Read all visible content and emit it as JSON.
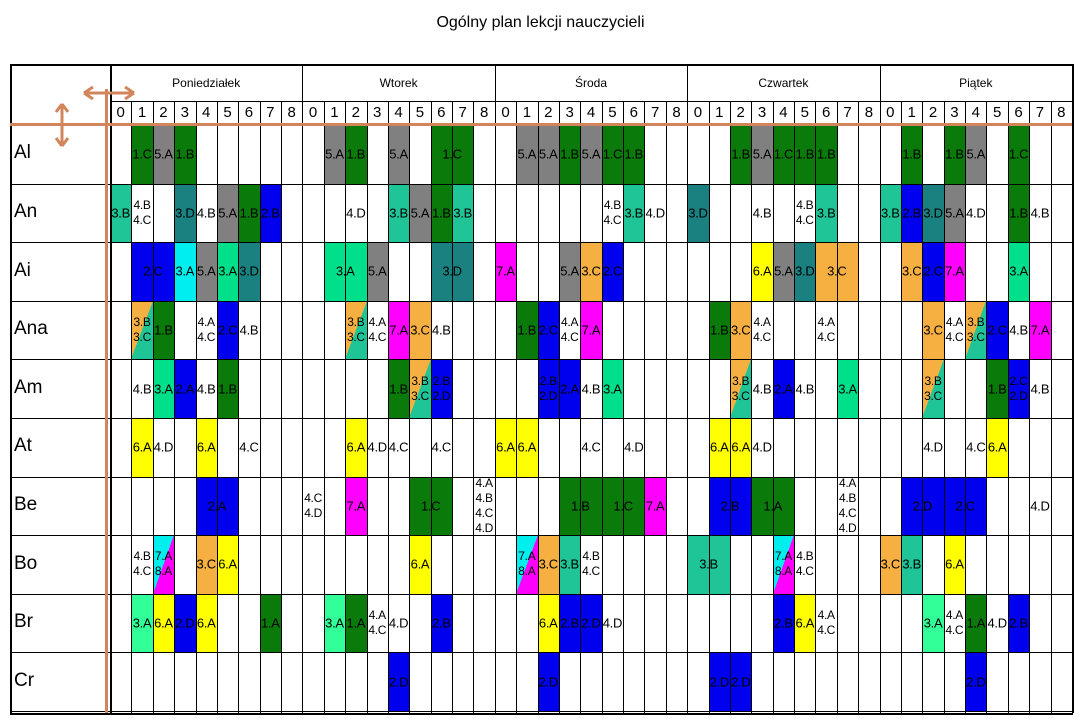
{
  "title": "Ogólny plan lekcji nauczycieli",
  "days": [
    "Poniedziałek",
    "Wtorek",
    "Środa",
    "Czwartek",
    "Piątek"
  ],
  "hours": [
    "0",
    "1",
    "2",
    "3",
    "4",
    "5",
    "6",
    "7",
    "8"
  ],
  "teachers": [
    "Al",
    "An",
    "Ai",
    "Ana",
    "Am",
    "At",
    "Be",
    "Bo",
    "Br",
    "Cr"
  ],
  "colors": {
    "green": "#0a7a0a",
    "gray": "#808080",
    "teal": "#1a8080",
    "seafoam": "#1fc497",
    "blue": "#0000ee",
    "yellow": "#ffff00",
    "orange": "#f6b042",
    "magenta": "#ff00ff",
    "cyan": "#00eeee",
    "mint": "#33ff99",
    "lightmint": "#00e08a",
    "accent_orange": "#d2855a"
  },
  "entries": [
    {
      "r": 0,
      "d": 0,
      "h": 1,
      "text": "1.C",
      "color": "green"
    },
    {
      "r": 0,
      "d": 0,
      "h": 2,
      "text": "5.A",
      "color": "gray"
    },
    {
      "r": 0,
      "d": 0,
      "h": 3,
      "text": "1.B",
      "color": "green"
    },
    {
      "r": 0,
      "d": 1,
      "h": 1,
      "text": "5.A",
      "color": "gray"
    },
    {
      "r": 0,
      "d": 1,
      "h": 2,
      "text": "1.B",
      "color": "green"
    },
    {
      "r": 0,
      "d": 1,
      "h": 4,
      "text": "5.A",
      "color": "gray"
    },
    {
      "r": 0,
      "d": 1,
      "h": 6,
      "text": "1.C",
      "color": "green",
      "span": 2
    },
    {
      "r": 0,
      "d": 2,
      "h": 1,
      "text": "5.A",
      "color": "gray"
    },
    {
      "r": 0,
      "d": 2,
      "h": 2,
      "text": "5.A",
      "color": "gray"
    },
    {
      "r": 0,
      "d": 2,
      "h": 3,
      "text": "1.B",
      "color": "green"
    },
    {
      "r": 0,
      "d": 2,
      "h": 4,
      "text": "5.A",
      "color": "gray"
    },
    {
      "r": 0,
      "d": 2,
      "h": 5,
      "text": "1.C",
      "color": "green"
    },
    {
      "r": 0,
      "d": 2,
      "h": 6,
      "text": "1.B",
      "color": "green"
    },
    {
      "r": 0,
      "d": 3,
      "h": 2,
      "text": "1.B",
      "color": "green"
    },
    {
      "r": 0,
      "d": 3,
      "h": 3,
      "text": "5.A",
      "color": "gray"
    },
    {
      "r": 0,
      "d": 3,
      "h": 4,
      "text": "1.C",
      "color": "green"
    },
    {
      "r": 0,
      "d": 3,
      "h": 5,
      "text": "1.B",
      "color": "green"
    },
    {
      "r": 0,
      "d": 3,
      "h": 6,
      "text": "1.B",
      "color": "green"
    },
    {
      "r": 0,
      "d": 4,
      "h": 1,
      "text": "1.B",
      "color": "green"
    },
    {
      "r": 0,
      "d": 4,
      "h": 3,
      "text": "1.B",
      "color": "green"
    },
    {
      "r": 0,
      "d": 4,
      "h": 4,
      "text": "5.A",
      "color": "gray"
    },
    {
      "r": 0,
      "d": 4,
      "h": 6,
      "text": "1.C",
      "color": "green"
    },
    {
      "r": 1,
      "d": 0,
      "h": 0,
      "text": "3.B",
      "color": "seafoam"
    },
    {
      "r": 1,
      "d": 0,
      "h": 1,
      "text": "4.B\n4.C",
      "color": ""
    },
    {
      "r": 1,
      "d": 0,
      "h": 3,
      "text": "3.D",
      "color": "teal"
    },
    {
      "r": 1,
      "d": 0,
      "h": 4,
      "text": "4.B",
      "color": ""
    },
    {
      "r": 1,
      "d": 0,
      "h": 5,
      "text": "5.A",
      "color": "gray"
    },
    {
      "r": 1,
      "d": 0,
      "h": 6,
      "text": "1.B",
      "color": "green"
    },
    {
      "r": 1,
      "d": 0,
      "h": 7,
      "text": "2.B",
      "color": "blue"
    },
    {
      "r": 1,
      "d": 1,
      "h": 2,
      "text": "4.D",
      "color": ""
    },
    {
      "r": 1,
      "d": 1,
      "h": 4,
      "text": "3.B",
      "color": "seafoam"
    },
    {
      "r": 1,
      "d": 1,
      "h": 5,
      "text": "5.A",
      "color": "gray"
    },
    {
      "r": 1,
      "d": 1,
      "h": 6,
      "text": "1.B",
      "color": "green"
    },
    {
      "r": 1,
      "d": 1,
      "h": 7,
      "text": "3.B",
      "color": "seafoam"
    },
    {
      "r": 1,
      "d": 2,
      "h": 5,
      "text": "4.B\n4.C",
      "color": ""
    },
    {
      "r": 1,
      "d": 2,
      "h": 6,
      "text": "3.B",
      "color": "seafoam"
    },
    {
      "r": 1,
      "d": 2,
      "h": 7,
      "text": "4.D",
      "color": ""
    },
    {
      "r": 1,
      "d": 3,
      "h": 0,
      "text": "3.D",
      "color": "teal"
    },
    {
      "r": 1,
      "d": 3,
      "h": 3,
      "text": "4.B",
      "color": ""
    },
    {
      "r": 1,
      "d": 3,
      "h": 5,
      "text": "4.B\n4.C",
      "color": ""
    },
    {
      "r": 1,
      "d": 3,
      "h": 6,
      "text": "3.B",
      "color": "seafoam"
    },
    {
      "r": 1,
      "d": 4,
      "h": 0,
      "text": "3.B",
      "color": "seafoam"
    },
    {
      "r": 1,
      "d": 4,
      "h": 1,
      "text": "2.B",
      "color": "blue"
    },
    {
      "r": 1,
      "d": 4,
      "h": 2,
      "text": "3.D",
      "color": "teal"
    },
    {
      "r": 1,
      "d": 4,
      "h": 3,
      "text": "5.A",
      "color": "gray"
    },
    {
      "r": 1,
      "d": 4,
      "h": 4,
      "text": "4.D",
      "color": ""
    },
    {
      "r": 1,
      "d": 4,
      "h": 6,
      "text": "1.B",
      "color": "green"
    },
    {
      "r": 1,
      "d": 4,
      "h": 7,
      "text": "4.B",
      "color": ""
    },
    {
      "r": 2,
      "d": 0,
      "h": 1,
      "text": "2.C",
      "color": "blue",
      "span": 2
    },
    {
      "r": 2,
      "d": 0,
      "h": 3,
      "text": "3.A",
      "color": "cyan"
    },
    {
      "r": 2,
      "d": 0,
      "h": 4,
      "text": "5.A",
      "color": "gray"
    },
    {
      "r": 2,
      "d": 0,
      "h": 5,
      "text": "3.A",
      "color": "lightmint"
    },
    {
      "r": 2,
      "d": 0,
      "h": 6,
      "text": "3.D",
      "color": "teal"
    },
    {
      "r": 2,
      "d": 1,
      "h": 1,
      "text": "3.A",
      "color": "lightmint",
      "span": 2
    },
    {
      "r": 2,
      "d": 1,
      "h": 3,
      "text": "5.A",
      "color": "gray"
    },
    {
      "r": 2,
      "d": 1,
      "h": 6,
      "text": "3.D",
      "color": "teal",
      "span": 2
    },
    {
      "r": 2,
      "d": 2,
      "h": 0,
      "text": "7.A",
      "color": "magenta"
    },
    {
      "r": 2,
      "d": 2,
      "h": 3,
      "text": "5.A",
      "color": "gray"
    },
    {
      "r": 2,
      "d": 2,
      "h": 4,
      "text": "3.C",
      "color": "orange"
    },
    {
      "r": 2,
      "d": 2,
      "h": 5,
      "text": "2.C",
      "color": "blue"
    },
    {
      "r": 2,
      "d": 3,
      "h": 3,
      "text": "6.A",
      "color": "yellow"
    },
    {
      "r": 2,
      "d": 3,
      "h": 4,
      "text": "5.A",
      "color": "gray"
    },
    {
      "r": 2,
      "d": 3,
      "h": 5,
      "text": "3.D",
      "color": "teal"
    },
    {
      "r": 2,
      "d": 3,
      "h": 6,
      "text": "3.C",
      "color": "orange",
      "span": 2
    },
    {
      "r": 2,
      "d": 4,
      "h": 1,
      "text": "3.C",
      "color": "orange"
    },
    {
      "r": 2,
      "d": 4,
      "h": 2,
      "text": "2.C",
      "color": "blue"
    },
    {
      "r": 2,
      "d": 4,
      "h": 3,
      "text": "7.A",
      "color": "magenta"
    },
    {
      "r": 2,
      "d": 4,
      "h": 6,
      "text": "3.A",
      "color": "lightmint"
    },
    {
      "r": 3,
      "d": 0,
      "h": 1,
      "text": "3.B\n3.C",
      "color": "seafoam",
      "split": "orange"
    },
    {
      "r": 3,
      "d": 0,
      "h": 2,
      "text": "1.B",
      "color": "green"
    },
    {
      "r": 3,
      "d": 0,
      "h": 4,
      "text": "4.A\n4.C",
      "color": ""
    },
    {
      "r": 3,
      "d": 0,
      "h": 5,
      "text": "2.C",
      "color": "blue"
    },
    {
      "r": 3,
      "d": 0,
      "h": 6,
      "text": "4.B",
      "color": ""
    },
    {
      "r": 3,
      "d": 1,
      "h": 2,
      "text": "3.B\n3.C",
      "color": "seafoam",
      "split": "orange"
    },
    {
      "r": 3,
      "d": 1,
      "h": 3,
      "text": "4.A\n4.C",
      "color": ""
    },
    {
      "r": 3,
      "d": 1,
      "h": 4,
      "text": "7.A",
      "color": "magenta"
    },
    {
      "r": 3,
      "d": 1,
      "h": 5,
      "text": "3.C",
      "color": "orange"
    },
    {
      "r": 3,
      "d": 1,
      "h": 6,
      "text": "4.B",
      "color": ""
    },
    {
      "r": 3,
      "d": 2,
      "h": 1,
      "text": "1.B",
      "color": "green"
    },
    {
      "r": 3,
      "d": 2,
      "h": 2,
      "text": "2.C",
      "color": "blue"
    },
    {
      "r": 3,
      "d": 2,
      "h": 3,
      "text": "4.A\n4.C",
      "color": ""
    },
    {
      "r": 3,
      "d": 2,
      "h": 4,
      "text": "7.A",
      "color": "magenta"
    },
    {
      "r": 3,
      "d": 3,
      "h": 1,
      "text": "1.B",
      "color": "green"
    },
    {
      "r": 3,
      "d": 3,
      "h": 2,
      "text": "3.C",
      "color": "orange"
    },
    {
      "r": 3,
      "d": 3,
      "h": 3,
      "text": "4.A\n4.C",
      "color": ""
    },
    {
      "r": 3,
      "d": 3,
      "h": 6,
      "text": "4.A\n4.C",
      "color": ""
    },
    {
      "r": 3,
      "d": 4,
      "h": 2,
      "text": "3.C",
      "color": "orange"
    },
    {
      "r": 3,
      "d": 4,
      "h": 3,
      "text": "4.A\n4.C",
      "color": ""
    },
    {
      "r": 3,
      "d": 4,
      "h": 4,
      "text": "3.B\n3.C",
      "color": "seafoam",
      "split": "orange"
    },
    {
      "r": 3,
      "d": 4,
      "h": 5,
      "text": "2.C",
      "color": "blue"
    },
    {
      "r": 3,
      "d": 4,
      "h": 6,
      "text": "4.B",
      "color": ""
    },
    {
      "r": 3,
      "d": 4,
      "h": 7,
      "text": "7.A",
      "color": "magenta"
    },
    {
      "r": 4,
      "d": 0,
      "h": 1,
      "text": "4.B",
      "color": ""
    },
    {
      "r": 4,
      "d": 0,
      "h": 2,
      "text": "3.A",
      "color": "lightmint"
    },
    {
      "r": 4,
      "d": 0,
      "h": 3,
      "text": "2.A",
      "color": "blue"
    },
    {
      "r": 4,
      "d": 0,
      "h": 4,
      "text": "4.B",
      "color": ""
    },
    {
      "r": 4,
      "d": 0,
      "h": 5,
      "text": "1.B",
      "color": "green"
    },
    {
      "r": 4,
      "d": 1,
      "h": 4,
      "text": "1.B",
      "color": "green"
    },
    {
      "r": 4,
      "d": 1,
      "h": 5,
      "text": "3.B\n3.C",
      "color": "seafoam",
      "split": "orange"
    },
    {
      "r": 4,
      "d": 1,
      "h": 6,
      "text": "2.B\n2.D",
      "color": "blue"
    },
    {
      "r": 4,
      "d": 2,
      "h": 2,
      "text": "2.B\n2.D",
      "color": "blue"
    },
    {
      "r": 4,
      "d": 2,
      "h": 3,
      "text": "2.A",
      "color": "blue"
    },
    {
      "r": 4,
      "d": 2,
      "h": 4,
      "text": "4.B",
      "color": ""
    },
    {
      "r": 4,
      "d": 2,
      "h": 5,
      "text": "3.A",
      "color": "lightmint"
    },
    {
      "r": 4,
      "d": 3,
      "h": 2,
      "text": "3.B\n3.C",
      "color": "seafoam",
      "split": "orange"
    },
    {
      "r": 4,
      "d": 3,
      "h": 3,
      "text": "4.B",
      "color": ""
    },
    {
      "r": 4,
      "d": 3,
      "h": 4,
      "text": "2.A",
      "color": "blue"
    },
    {
      "r": 4,
      "d": 3,
      "h": 5,
      "text": "4.B",
      "color": ""
    },
    {
      "r": 4,
      "d": 3,
      "h": 7,
      "text": "3.A",
      "color": "lightmint"
    },
    {
      "r": 4,
      "d": 4,
      "h": 2,
      "text": "3.B\n3.C",
      "color": "seafoam",
      "split": "orange"
    },
    {
      "r": 4,
      "d": 4,
      "h": 5,
      "text": "1.B",
      "color": "green"
    },
    {
      "r": 4,
      "d": 4,
      "h": 6,
      "text": "2.C\n2.D",
      "color": "blue"
    },
    {
      "r": 4,
      "d": 4,
      "h": 7,
      "text": "4.B",
      "color": ""
    },
    {
      "r": 5,
      "d": 0,
      "h": 1,
      "text": "6.A",
      "color": "yellow"
    },
    {
      "r": 5,
      "d": 0,
      "h": 2,
      "text": "4.D",
      "color": ""
    },
    {
      "r": 5,
      "d": 0,
      "h": 4,
      "text": "6.A",
      "color": "yellow"
    },
    {
      "r": 5,
      "d": 0,
      "h": 6,
      "text": "4.C",
      "color": ""
    },
    {
      "r": 5,
      "d": 1,
      "h": 2,
      "text": "6.A",
      "color": "yellow"
    },
    {
      "r": 5,
      "d": 1,
      "h": 3,
      "text": "4.D",
      "color": ""
    },
    {
      "r": 5,
      "d": 1,
      "h": 4,
      "text": "4.C",
      "color": ""
    },
    {
      "r": 5,
      "d": 1,
      "h": 6,
      "text": "4.C",
      "color": ""
    },
    {
      "r": 5,
      "d": 2,
      "h": 0,
      "text": "6.A",
      "color": "yellow"
    },
    {
      "r": 5,
      "d": 2,
      "h": 1,
      "text": "6.A",
      "color": "yellow"
    },
    {
      "r": 5,
      "d": 2,
      "h": 4,
      "text": "4.C",
      "color": ""
    },
    {
      "r": 5,
      "d": 2,
      "h": 6,
      "text": "4.D",
      "color": ""
    },
    {
      "r": 5,
      "d": 3,
      "h": 1,
      "text": "6.A",
      "color": "yellow"
    },
    {
      "r": 5,
      "d": 3,
      "h": 2,
      "text": "6.A",
      "color": "yellow"
    },
    {
      "r": 5,
      "d": 3,
      "h": 3,
      "text": "4.D",
      "color": ""
    },
    {
      "r": 5,
      "d": 4,
      "h": 2,
      "text": "4.D",
      "color": ""
    },
    {
      "r": 5,
      "d": 4,
      "h": 4,
      "text": "4.C",
      "color": ""
    },
    {
      "r": 5,
      "d": 4,
      "h": 5,
      "text": "6.A",
      "color": "yellow"
    },
    {
      "r": 6,
      "d": 0,
      "h": 4,
      "text": "2.A",
      "color": "blue",
      "span": 2
    },
    {
      "r": 6,
      "d": 1,
      "h": 0,
      "text": "4.C\n4.D",
      "color": ""
    },
    {
      "r": 6,
      "d": 1,
      "h": 2,
      "text": "7.A",
      "color": "magenta"
    },
    {
      "r": 6,
      "d": 1,
      "h": 5,
      "text": "1.C",
      "color": "green",
      "span": 2
    },
    {
      "r": 6,
      "d": 1,
      "h": 8,
      "text": "4.A\n4.B\n4.C\n4.D",
      "color": ""
    },
    {
      "r": 6,
      "d": 2,
      "h": 3,
      "text": "1.B",
      "color": "green",
      "span": 2
    },
    {
      "r": 6,
      "d": 2,
      "h": 5,
      "text": "1.C",
      "color": "green",
      "span": 2
    },
    {
      "r": 6,
      "d": 2,
      "h": 7,
      "text": "7.A",
      "color": "magenta"
    },
    {
      "r": 6,
      "d": 3,
      "h": 1,
      "text": "2.B",
      "color": "blue",
      "span": 2
    },
    {
      "r": 6,
      "d": 3,
      "h": 3,
      "text": "1.A",
      "color": "green",
      "span": 2
    },
    {
      "r": 6,
      "d": 3,
      "h": 7,
      "text": "4.A\n4.B\n4.C\n4.D",
      "color": ""
    },
    {
      "r": 6,
      "d": 4,
      "h": 1,
      "text": "2.D",
      "color": "blue",
      "span": 2
    },
    {
      "r": 6,
      "d": 4,
      "h": 3,
      "text": "2.C",
      "color": "blue",
      "span": 2
    },
    {
      "r": 6,
      "d": 4,
      "h": 7,
      "text": "4.D",
      "color": ""
    },
    {
      "r": 7,
      "d": 0,
      "h": 1,
      "text": "4.B\n4.C",
      "color": ""
    },
    {
      "r": 7,
      "d": 0,
      "h": 2,
      "text": "7.A\n8.A",
      "color": "magenta",
      "split": "cyan"
    },
    {
      "r": 7,
      "d": 0,
      "h": 4,
      "text": "3.C",
      "color": "orange"
    },
    {
      "r": 7,
      "d": 0,
      "h": 5,
      "text": "6.A",
      "color": "yellow"
    },
    {
      "r": 7,
      "d": 1,
      "h": 5,
      "text": "6.A",
      "color": "yellow"
    },
    {
      "r": 7,
      "d": 2,
      "h": 1,
      "text": "7.A\n8.A",
      "color": "magenta",
      "split": "cyan"
    },
    {
      "r": 7,
      "d": 2,
      "h": 2,
      "text": "3.C",
      "color": "orange"
    },
    {
      "r": 7,
      "d": 2,
      "h": 3,
      "text": "3.B",
      "color": "seafoam"
    },
    {
      "r": 7,
      "d": 2,
      "h": 4,
      "text": "4.B\n4.C",
      "color": ""
    },
    {
      "r": 7,
      "d": 3,
      "h": 0,
      "text": "3.B",
      "color": "seafoam",
      "span": 2
    },
    {
      "r": 7,
      "d": 3,
      "h": 4,
      "text": "7.A\n8.A",
      "color": "magenta",
      "split": "cyan"
    },
    {
      "r": 7,
      "d": 3,
      "h": 5,
      "text": "4.B\n4.C",
      "color": ""
    },
    {
      "r": 7,
      "d": 4,
      "h": 0,
      "text": "3.C",
      "color": "orange"
    },
    {
      "r": 7,
      "d": 4,
      "h": 1,
      "text": "3.B",
      "color": "seafoam"
    },
    {
      "r": 7,
      "d": 4,
      "h": 3,
      "text": "6.A",
      "color": "yellow"
    },
    {
      "r": 8,
      "d": 0,
      "h": 1,
      "text": "3.A",
      "color": "mint"
    },
    {
      "r": 8,
      "d": 0,
      "h": 2,
      "text": "6.A",
      "color": "yellow"
    },
    {
      "r": 8,
      "d": 0,
      "h": 3,
      "text": "2.D",
      "color": "blue"
    },
    {
      "r": 8,
      "d": 0,
      "h": 4,
      "text": "6.A",
      "color": "yellow"
    },
    {
      "r": 8,
      "d": 0,
      "h": 7,
      "text": "1.A",
      "color": "green"
    },
    {
      "r": 8,
      "d": 1,
      "h": 1,
      "text": "3.A",
      "color": "mint"
    },
    {
      "r": 8,
      "d": 1,
      "h": 2,
      "text": "1.A",
      "color": "green"
    },
    {
      "r": 8,
      "d": 1,
      "h": 3,
      "text": "4.A\n4.C",
      "color": ""
    },
    {
      "r": 8,
      "d": 1,
      "h": 4,
      "text": "4.D",
      "color": ""
    },
    {
      "r": 8,
      "d": 1,
      "h": 6,
      "text": "2.B",
      "color": "blue"
    },
    {
      "r": 8,
      "d": 2,
      "h": 2,
      "text": "6.A",
      "color": "yellow"
    },
    {
      "r": 8,
      "d": 2,
      "h": 3,
      "text": "2.B",
      "color": "blue"
    },
    {
      "r": 8,
      "d": 2,
      "h": 4,
      "text": "2.D",
      "color": "blue"
    },
    {
      "r": 8,
      "d": 2,
      "h": 5,
      "text": "4.D",
      "color": ""
    },
    {
      "r": 8,
      "d": 3,
      "h": 4,
      "text": "2.B",
      "color": "blue"
    },
    {
      "r": 8,
      "d": 3,
      "h": 5,
      "text": "6.A",
      "color": "yellow"
    },
    {
      "r": 8,
      "d": 3,
      "h": 6,
      "text": "4.A\n4.C",
      "color": ""
    },
    {
      "r": 8,
      "d": 4,
      "h": 2,
      "text": "3.A",
      "color": "mint"
    },
    {
      "r": 8,
      "d": 4,
      "h": 3,
      "text": "4.A\n4.C",
      "color": ""
    },
    {
      "r": 8,
      "d": 4,
      "h": 4,
      "text": "1.A",
      "color": "green"
    },
    {
      "r": 8,
      "d": 4,
      "h": 5,
      "text": "4.D",
      "color": ""
    },
    {
      "r": 8,
      "d": 4,
      "h": 6,
      "text": "2.B",
      "color": "blue"
    },
    {
      "r": 9,
      "d": 1,
      "h": 4,
      "text": "2.D",
      "color": "blue"
    },
    {
      "r": 9,
      "d": 2,
      "h": 2,
      "text": "2.D",
      "color": "blue"
    },
    {
      "r": 9,
      "d": 3,
      "h": 1,
      "text": "2.D",
      "color": "blue"
    },
    {
      "r": 9,
      "d": 3,
      "h": 2,
      "text": "2.D",
      "color": "blue"
    },
    {
      "r": 9,
      "d": 4,
      "h": 4,
      "text": "2.D",
      "color": "blue"
    }
  ]
}
